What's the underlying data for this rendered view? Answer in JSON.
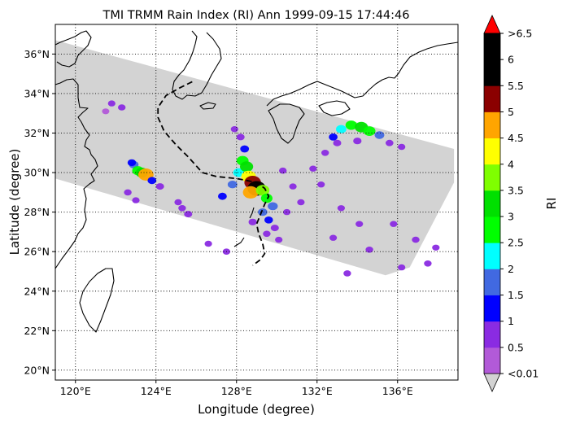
{
  "title": "TMI TRMM Rain Index (RI) Ann 1999-09-15 17:44:46",
  "xlabel": "Longitude (degree)",
  "ylabel": "Latitude (degree)",
  "colorbar": {
    "label": "RI",
    "tick_labels": [
      "<0.01",
      "0.5",
      "1",
      "1.5",
      "2",
      "2.5",
      "3",
      "3.5",
      "4",
      "4.5",
      "5",
      "5.5",
      "6",
      ">6.5"
    ],
    "levels": [
      0.01,
      0.5,
      1,
      1.5,
      2,
      2.5,
      3,
      3.5,
      4,
      4.5,
      5,
      5.5,
      6,
      6.5
    ],
    "under_color": "#d3d3d3",
    "over_color": "#ff0000",
    "colors": [
      "#b25ad8",
      "#8a2be2",
      "#0000ff",
      "#4169e1",
      "#00ffff",
      "#00ff00",
      "#00e000",
      "#7fff00",
      "#ffff00",
      "#ffa500",
      "#8b0000",
      "#000000",
      "#000000"
    ]
  },
  "chart_data": {
    "type": "map",
    "lon_range": [
      119,
      139
    ],
    "lat_range": [
      19.5,
      37.5
    ],
    "x_ticks": [
      120,
      124,
      128,
      132,
      136
    ],
    "x_tick_labels": [
      "120°E",
      "124°E",
      "128°E",
      "132°E",
      "136°E"
    ],
    "y_ticks": [
      20,
      22,
      24,
      26,
      28,
      30,
      32,
      34,
      36
    ],
    "y_tick_labels": [
      "20°N",
      "22°N",
      "24°N",
      "26°N",
      "28°N",
      "30°N",
      "32°N",
      "34°N",
      "36°N"
    ],
    "grid": true,
    "grid_style": "dotted",
    "swath_corners_lonlat": [
      [
        119,
        36.7
      ],
      [
        138.8,
        31.2
      ],
      [
        138.8,
        29.5
      ],
      [
        136.6,
        25.2
      ],
      [
        135.4,
        24.8
      ],
      [
        119,
        29.7
      ]
    ],
    "typhoon_track_lonlat": [
      [
        125.8,
        34.6
      ],
      [
        125.2,
        34.3
      ],
      [
        124.5,
        33.9
      ],
      [
        124.1,
        33.3
      ],
      [
        124.1,
        32.8
      ],
      [
        124.4,
        32.1
      ],
      [
        125.0,
        31.4
      ],
      [
        125.6,
        30.8
      ],
      [
        126.3,
        30.0
      ],
      [
        127.0,
        29.8
      ],
      [
        128.0,
        29.7
      ],
      [
        129.0,
        29.5
      ],
      [
        129.4,
        29.2
      ],
      [
        129.6,
        28.8
      ],
      [
        129.4,
        28.4
      ],
      [
        129.2,
        27.9
      ],
      [
        129.0,
        27.4
      ],
      [
        129.1,
        26.9
      ],
      [
        129.3,
        26.4
      ],
      [
        129.4,
        25.9
      ],
      [
        129.2,
        25.6
      ],
      [
        128.8,
        25.3
      ]
    ],
    "rain_cells_lonlat_ri": [
      [
        121.8,
        33.5,
        0.5
      ],
      [
        122.3,
        33.3,
        0.6
      ],
      [
        121.5,
        33.1,
        0.4
      ],
      [
        122.9,
        30.4,
        1.5
      ],
      [
        123.1,
        30.1,
        2.5
      ],
      [
        123.3,
        30.0,
        3.0
      ],
      [
        123.5,
        29.9,
        4.5
      ],
      [
        122.8,
        30.5,
        1.0
      ],
      [
        123.8,
        29.6,
        1.2
      ],
      [
        124.2,
        29.3,
        0.8
      ],
      [
        122.6,
        29.0,
        0.6
      ],
      [
        123.0,
        28.6,
        0.5
      ],
      [
        125.3,
        28.2,
        0.6
      ],
      [
        125.6,
        27.9,
        0.8
      ],
      [
        125.1,
        28.5,
        0.5
      ],
      [
        127.3,
        28.8,
        1.2
      ],
      [
        127.8,
        29.4,
        1.6
      ],
      [
        128.1,
        30.0,
        2.2
      ],
      [
        128.3,
        30.6,
        2.8
      ],
      [
        128.5,
        30.3,
        3.4
      ],
      [
        128.6,
        29.8,
        4.2
      ],
      [
        128.8,
        29.5,
        5.2
      ],
      [
        129.0,
        29.2,
        6.0
      ],
      [
        128.7,
        29.0,
        4.6
      ],
      [
        129.3,
        29.1,
        3.6
      ],
      [
        129.5,
        28.7,
        2.6
      ],
      [
        129.8,
        28.3,
        1.8
      ],
      [
        128.4,
        31.2,
        1.2
      ],
      [
        128.2,
        31.8,
        0.8
      ],
      [
        127.9,
        32.2,
        0.5
      ],
      [
        129.3,
        28.0,
        1.5
      ],
      [
        129.6,
        27.6,
        1.1
      ],
      [
        129.9,
        27.2,
        0.8
      ],
      [
        129.5,
        26.9,
        0.6
      ],
      [
        130.1,
        26.6,
        0.5
      ],
      [
        128.8,
        27.5,
        0.9
      ],
      [
        130.3,
        30.1,
        0.6
      ],
      [
        130.8,
        29.3,
        0.5
      ],
      [
        131.2,
        28.5,
        0.5
      ],
      [
        130.5,
        28.0,
        0.5
      ],
      [
        132.8,
        31.8,
        1.2
      ],
      [
        133.2,
        32.2,
        2.0
      ],
      [
        133.7,
        32.4,
        2.6
      ],
      [
        134.2,
        32.3,
        3.4
      ],
      [
        134.6,
        32.1,
        2.8
      ],
      [
        135.1,
        31.9,
        1.6
      ],
      [
        133.0,
        31.5,
        0.8
      ],
      [
        135.6,
        31.5,
        0.7
      ],
      [
        136.2,
        31.3,
        0.5
      ],
      [
        132.4,
        31.0,
        0.6
      ],
      [
        134.0,
        31.6,
        0.9
      ],
      [
        131.8,
        30.2,
        0.5
      ],
      [
        132.2,
        29.4,
        0.5
      ],
      [
        133.2,
        28.2,
        0.5
      ],
      [
        134.1,
        27.4,
        0.5
      ],
      [
        134.6,
        26.1,
        0.6
      ],
      [
        135.8,
        27.4,
        0.5
      ],
      [
        136.9,
        26.6,
        0.6
      ],
      [
        137.5,
        25.4,
        0.6
      ],
      [
        137.9,
        26.2,
        0.5
      ],
      [
        132.8,
        26.7,
        0.5
      ],
      [
        133.5,
        24.9,
        0.6
      ],
      [
        136.2,
        25.2,
        0.5
      ],
      [
        126.6,
        26.4,
        0.5
      ],
      [
        127.5,
        26.0,
        0.6
      ]
    ]
  }
}
